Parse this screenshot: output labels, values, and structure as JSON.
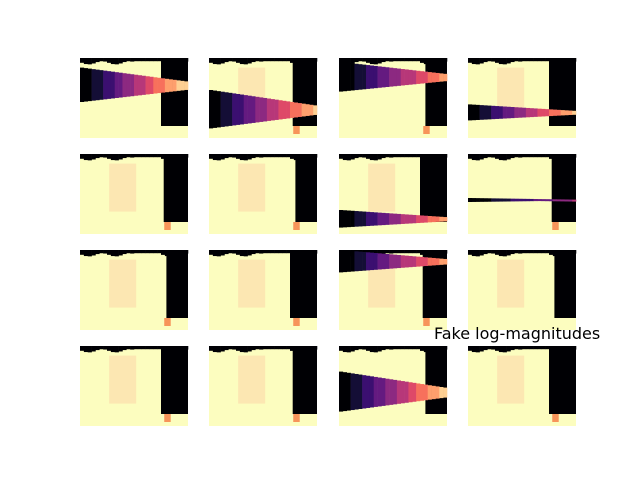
{
  "figure": {
    "background": "#ffffff",
    "colormap": "magma",
    "text_color": "#000000"
  },
  "chart_data": {
    "type": "heatmap",
    "title": "",
    "annotation": "Fake log-magnitudes",
    "axes_visible": false,
    "grid": false,
    "legend": "none",
    "layout": {
      "rows": 4,
      "cols": 4
    },
    "value_range": [
      0,
      1
    ],
    "palette": {
      "black": "#000004",
      "bright": "#fcfdbf",
      "highlight": "#fce7b2",
      "mid_red": "#ef5a5a",
      "mid_orange": "#f7945a"
    },
    "panels": [
      {
        "stripes": [
          0.42,
          0.45
        ],
        "bands": [
          0.1,
          0.55
        ],
        "bandTop": 0.12,
        "bandBot": 0.55,
        "dark": 1.0,
        "highlight": false,
        "spikes": 0
      },
      {
        "stripes": [
          0.38,
          0.42
        ],
        "bands": [
          0.42,
          0.9
        ],
        "bandTop": 0.4,
        "bandBot": 0.88,
        "dark": 0.9,
        "highlight": true,
        "spikes": 1
      },
      {
        "stripes": [
          0.44,
          0.42
        ],
        "bands": [
          0.02,
          0.4
        ],
        "bandTop": 0.05,
        "bandBot": 0.42,
        "dark": 0.85,
        "highlight": false,
        "spikes": 1
      },
      {
        "stripes": [
          0.38,
          0.45
        ],
        "bands": [
          0.58,
          0.75
        ],
        "bandTop": 0.58,
        "bandBot": 0.78,
        "dark": 0.9,
        "highlight": true,
        "spikes": 0
      },
      {
        "stripes": [
          0.4,
          0.4
        ],
        "bands": [
          0.0,
          0.0
        ],
        "bandTop": 0.0,
        "bandBot": 0.0,
        "dark": 0.0,
        "highlight": true,
        "spikes": 1
      },
      {
        "stripes": [
          0.38,
          0.42
        ],
        "bands": [
          0.0,
          0.0
        ],
        "bandTop": 0.0,
        "bandBot": 0.0,
        "dark": 0.0,
        "highlight": true,
        "spikes": 1
      },
      {
        "stripes": [
          0.42,
          0.4
        ],
        "bands": [
          0.68,
          0.92
        ],
        "bandTop": 0.7,
        "bandBot": 0.92,
        "dark": 0.85,
        "highlight": true,
        "spikes": 0
      },
      {
        "stripes": [
          0.4,
          0.42
        ],
        "bands": [
          0.55,
          0.6
        ],
        "bandTop": 0.55,
        "bandBot": 0.6,
        "dark": 0.5,
        "highlight": false,
        "spikes": 1
      },
      {
        "stripes": [
          0.4,
          0.4
        ],
        "bands": [
          0.0,
          0.0
        ],
        "bandTop": 0.0,
        "bandBot": 0.0,
        "dark": 0.0,
        "highlight": true,
        "spikes": 1
      },
      {
        "stripes": [
          0.38,
          0.42
        ],
        "bands": [
          0.0,
          0.0
        ],
        "bandTop": 0.0,
        "bandBot": 0.0,
        "dark": 0.0,
        "highlight": true,
        "spikes": 1
      },
      {
        "stripes": [
          0.42,
          0.4
        ],
        "bands": [
          0.02,
          0.28
        ],
        "bandTop": 0.0,
        "bandBot": 0.28,
        "dark": 0.85,
        "highlight": true,
        "spikes": 1
      },
      {
        "stripes": [
          0.4,
          0.42
        ],
        "bands": [
          0.0,
          0.0
        ],
        "bandTop": 0.0,
        "bandBot": 0.0,
        "dark": 0.0,
        "highlight": true,
        "spikes": 0
      },
      {
        "stripes": [
          0.4,
          0.4
        ],
        "bands": [
          0.0,
          0.0
        ],
        "bandTop": 0.0,
        "bandBot": 0.0,
        "dark": 0.0,
        "highlight": true,
        "spikes": 1
      },
      {
        "stripes": [
          0.38,
          0.42
        ],
        "bands": [
          0.0,
          0.0
        ],
        "bandTop": 0.0,
        "bandBot": 0.0,
        "dark": 0.0,
        "highlight": true,
        "spikes": 1
      },
      {
        "stripes": [
          0.42,
          0.4
        ],
        "bands": [
          0.35,
          0.82
        ],
        "bandTop": 0.32,
        "bandBot": 0.82,
        "dark": 0.95,
        "highlight": false,
        "spikes": 0
      },
      {
        "stripes": [
          0.4,
          0.42
        ],
        "bands": [
          0.0,
          0.0
        ],
        "bandTop": 0.0,
        "bandBot": 0.0,
        "dark": 0.0,
        "highlight": true,
        "spikes": 1
      }
    ]
  }
}
